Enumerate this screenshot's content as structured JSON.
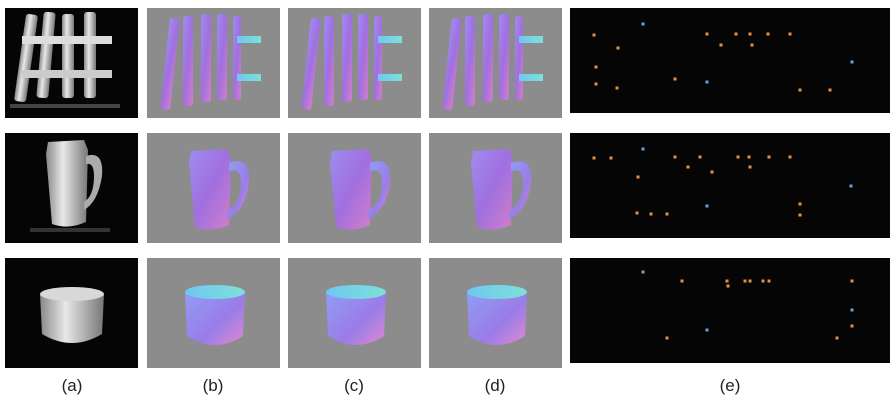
{
  "captions": [
    "(a)",
    "(b)",
    "(c)",
    "(d)",
    "(e)"
  ]
}
